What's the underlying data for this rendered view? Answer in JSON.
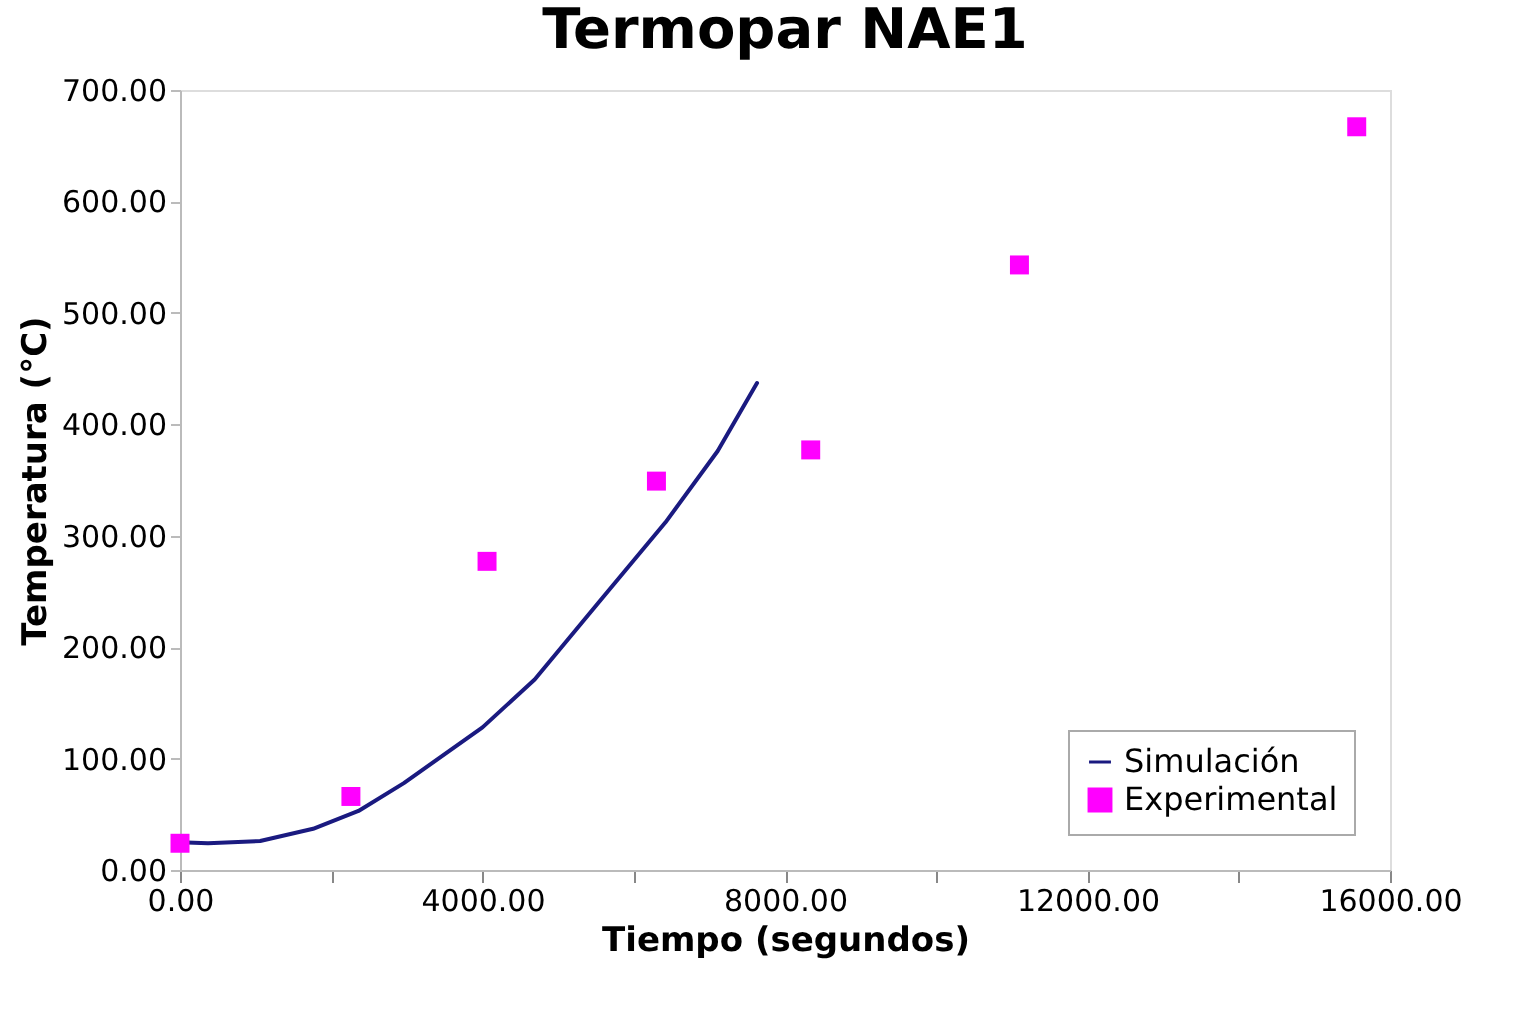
{
  "chart_data": {
    "type": "line",
    "title": "Termopar NAE1",
    "xlabel": "Tiempo (segundos)",
    "ylabel": "Temperatura (°C)",
    "xlim": [
      0,
      16000
    ],
    "ylim": [
      0,
      700
    ],
    "xticks": [
      {
        "value": 0,
        "label": "0.00"
      },
      {
        "value": 2000,
        "label": null
      },
      {
        "value": 4000,
        "label": "4000.00"
      },
      {
        "value": 6000,
        "label": null
      },
      {
        "value": 8000,
        "label": "8000.00"
      },
      {
        "value": 10000,
        "label": null
      },
      {
        "value": 12000,
        "label": "12000.00"
      },
      {
        "value": 14000,
        "label": null
      },
      {
        "value": 16000,
        "label": "16000.00"
      }
    ],
    "yticks": [
      {
        "value": 0,
        "label": "0.00"
      },
      {
        "value": 100,
        "label": "100.00"
      },
      {
        "value": 200,
        "label": "200.00"
      },
      {
        "value": 300,
        "label": "300.00"
      },
      {
        "value": 400,
        "label": "400.00"
      },
      {
        "value": 500,
        "label": "500.00"
      },
      {
        "value": 600,
        "label": "600.00"
      },
      {
        "value": 700,
        "label": "700.00"
      }
    ],
    "grid": false,
    "legend": "bottom right",
    "series": [
      {
        "name": "Simulación",
        "color": "#1a1a80",
        "marker": "none",
        "line_style": "solid",
        "x": [
          0,
          370,
          1060,
          1760,
          2360,
          2960,
          4000,
          4690,
          5560,
          6420,
          7110,
          7630
        ],
        "values": [
          25,
          24,
          26,
          37,
          53,
          78,
          128,
          171,
          242,
          312,
          376,
          437
        ]
      },
      {
        "name": "Experimental",
        "type": "scatter",
        "color": "#ff00ff",
        "marker": "square",
        "x": [
          0,
          2260,
          4060,
          6300,
          8340,
          11100,
          15560
        ],
        "values": [
          24,
          66,
          277,
          349,
          377,
          543,
          667
        ]
      }
    ]
  }
}
